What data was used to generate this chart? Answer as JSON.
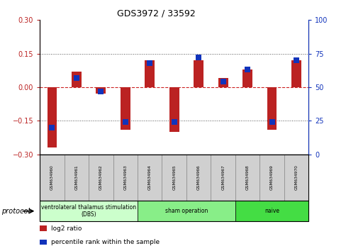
{
  "title": "GDS3972 / 33592",
  "samples": [
    "GSM634960",
    "GSM634961",
    "GSM634962",
    "GSM634963",
    "GSM634964",
    "GSM634965",
    "GSM634966",
    "GSM634967",
    "GSM634968",
    "GSM634969",
    "GSM634970"
  ],
  "log2_ratio": [
    -0.27,
    0.07,
    -0.03,
    -0.19,
    0.12,
    -0.2,
    0.12,
    0.04,
    0.08,
    -0.19,
    0.12
  ],
  "percentile": [
    20,
    57,
    47,
    24,
    68,
    24,
    72,
    54,
    63,
    24,
    70
  ],
  "ylim_left": [
    -0.3,
    0.3
  ],
  "ylim_right": [
    0,
    100
  ],
  "yticks_left": [
    -0.3,
    -0.15,
    0,
    0.15,
    0.3
  ],
  "yticks_right": [
    0,
    25,
    50,
    75,
    100
  ],
  "bar_color": "#bb2222",
  "dot_color": "#1133bb",
  "zero_line_color": "#cc2222",
  "dotted_color": "#555555",
  "groups": [
    {
      "label": "ventrolateral thalamus stimulation\n(DBS)",
      "start": 0,
      "end": 3,
      "color": "#ccffcc"
    },
    {
      "label": "sham operation",
      "start": 4,
      "end": 7,
      "color": "#88ee88"
    },
    {
      "label": "naive",
      "start": 8,
      "end": 10,
      "color": "#44dd44"
    }
  ],
  "protocol_label": "protocol",
  "legend_items": [
    {
      "color": "#bb2222",
      "label": "log2 ratio"
    },
    {
      "color": "#1133bb",
      "label": "percentile rank within the sample"
    }
  ],
  "bg_color": "#ffffff"
}
